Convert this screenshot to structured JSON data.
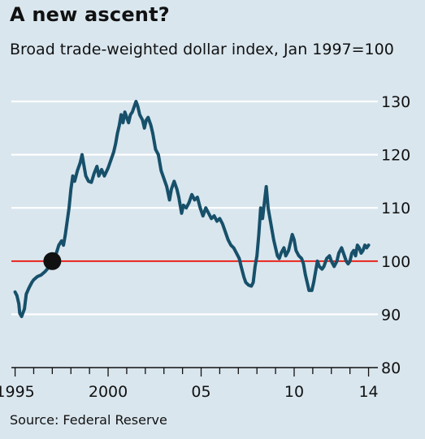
{
  "chart_data": {
    "type": "line",
    "title": "A new ascent?",
    "subtitle": "Broad trade-weighted dollar index, Jan 1997=100",
    "source": "Source: Federal Reserve",
    "xlabel": "",
    "ylabel": "",
    "xlim": [
      1994.8,
      2014.5
    ],
    "ylim": [
      80,
      130
    ],
    "y_axis_position": "right",
    "grid": "horizontal",
    "yticks": [
      130,
      120,
      110,
      100,
      90,
      80
    ],
    "ytick_labels": [
      "130",
      "120",
      "110",
      "100",
      "90",
      "80"
    ],
    "xtick_labels": [
      {
        "value": 1995,
        "label": "1995"
      },
      {
        "value": 2000,
        "label": "2000"
      },
      {
        "value": 2005,
        "label": "05"
      },
      {
        "value": 2010,
        "label": "10"
      },
      {
        "value": 2014,
        "label": "14"
      }
    ],
    "reference_line": {
      "y": 100,
      "color": "#e3120b"
    },
    "marker": {
      "x": 1997.0,
      "y": 100,
      "color": "#111111"
    },
    "line_color": "#17506a",
    "series": [
      {
        "name": "",
        "points": [
          [
            1995.0,
            94.2
          ],
          [
            1995.1,
            93.5
          ],
          [
            1995.2,
            92.0
          ],
          [
            1995.25,
            90.2
          ],
          [
            1995.35,
            89.6
          ],
          [
            1995.5,
            91.0
          ],
          [
            1995.6,
            93.8
          ],
          [
            1995.75,
            95.0
          ],
          [
            1995.9,
            96.0
          ],
          [
            1996.0,
            96.5
          ],
          [
            1996.2,
            97.1
          ],
          [
            1996.4,
            97.4
          ],
          [
            1996.6,
            98.0
          ],
          [
            1996.8,
            98.8
          ],
          [
            1997.0,
            100.0
          ],
          [
            1997.2,
            101.3
          ],
          [
            1997.35,
            103.0
          ],
          [
            1997.5,
            103.8
          ],
          [
            1997.6,
            103.0
          ],
          [
            1997.7,
            105.0
          ],
          [
            1997.8,
            107.5
          ],
          [
            1997.9,
            110.0
          ],
          [
            1998.0,
            113.5
          ],
          [
            1998.1,
            116.0
          ],
          [
            1998.2,
            115.0
          ],
          [
            1998.35,
            117.0
          ],
          [
            1998.5,
            118.5
          ],
          [
            1998.6,
            120.0
          ],
          [
            1998.7,
            118.0
          ],
          [
            1998.8,
            116.0
          ],
          [
            1998.95,
            115.0
          ],
          [
            1999.1,
            114.8
          ],
          [
            1999.25,
            116.5
          ],
          [
            1999.4,
            117.8
          ],
          [
            1999.5,
            116.0
          ],
          [
            1999.65,
            117.2
          ],
          [
            1999.8,
            116.0
          ],
          [
            2000.0,
            117.5
          ],
          [
            2000.15,
            119.0
          ],
          [
            2000.3,
            120.5
          ],
          [
            2000.4,
            122.0
          ],
          [
            2000.5,
            124.0
          ],
          [
            2000.6,
            125.5
          ],
          [
            2000.7,
            127.5
          ],
          [
            2000.8,
            126.0
          ],
          [
            2000.9,
            128.0
          ],
          [
            2001.0,
            127.0
          ],
          [
            2001.1,
            126.0
          ],
          [
            2001.2,
            127.5
          ],
          [
            2001.3,
            128.0
          ],
          [
            2001.45,
            129.5
          ],
          [
            2001.5,
            130.0
          ],
          [
            2001.6,
            129.0
          ],
          [
            2001.7,
            127.5
          ],
          [
            2001.85,
            126.5
          ],
          [
            2001.95,
            125.0
          ],
          [
            2002.05,
            126.5
          ],
          [
            2002.15,
            127.0
          ],
          [
            2002.3,
            125.5
          ],
          [
            2002.4,
            124.0
          ],
          [
            2002.55,
            121.0
          ],
          [
            2002.7,
            120.0
          ],
          [
            2002.85,
            117.0
          ],
          [
            2003.0,
            115.5
          ],
          [
            2003.15,
            114.0
          ],
          [
            2003.3,
            111.5
          ],
          [
            2003.4,
            113.5
          ],
          [
            2003.55,
            115.0
          ],
          [
            2003.7,
            113.5
          ],
          [
            2003.8,
            112.0
          ],
          [
            2003.95,
            109.0
          ],
          [
            2004.05,
            110.5
          ],
          [
            2004.2,
            110.0
          ],
          [
            2004.35,
            111.0
          ],
          [
            2004.5,
            112.5
          ],
          [
            2004.65,
            111.5
          ],
          [
            2004.8,
            112.0
          ],
          [
            2004.95,
            110.0
          ],
          [
            2005.1,
            108.5
          ],
          [
            2005.25,
            110.0
          ],
          [
            2005.4,
            109.0
          ],
          [
            2005.55,
            108.0
          ],
          [
            2005.7,
            108.5
          ],
          [
            2005.85,
            107.5
          ],
          [
            2006.0,
            108.0
          ],
          [
            2006.15,
            107.0
          ],
          [
            2006.3,
            105.5
          ],
          [
            2006.45,
            104.0
          ],
          [
            2006.6,
            103.0
          ],
          [
            2006.75,
            102.5
          ],
          [
            2006.9,
            101.5
          ],
          [
            2007.05,
            100.5
          ],
          [
            2007.15,
            99.0
          ],
          [
            2007.3,
            97.0
          ],
          [
            2007.4,
            96.0
          ],
          [
            2007.55,
            95.5
          ],
          [
            2007.7,
            95.3
          ],
          [
            2007.8,
            96.0
          ],
          [
            2007.9,
            99.0
          ],
          [
            2008.0,
            101.0
          ],
          [
            2008.1,
            105.0
          ],
          [
            2008.2,
            110.0
          ],
          [
            2008.3,
            108.0
          ],
          [
            2008.4,
            111.0
          ],
          [
            2008.5,
            114.0
          ],
          [
            2008.6,
            110.0
          ],
          [
            2008.7,
            108.0
          ],
          [
            2008.8,
            106.0
          ],
          [
            2008.9,
            104.0
          ],
          [
            2009.0,
            102.5
          ],
          [
            2009.1,
            101.0
          ],
          [
            2009.2,
            100.5
          ],
          [
            2009.3,
            101.5
          ],
          [
            2009.45,
            102.5
          ],
          [
            2009.55,
            101.0
          ],
          [
            2009.7,
            102.0
          ],
          [
            2009.8,
            103.5
          ],
          [
            2009.9,
            105.0
          ],
          [
            2010.0,
            104.0
          ],
          [
            2010.1,
            102.0
          ],
          [
            2010.25,
            101.0
          ],
          [
            2010.4,
            100.5
          ],
          [
            2010.5,
            99.5
          ],
          [
            2010.6,
            97.5
          ],
          [
            2010.7,
            96.0
          ],
          [
            2010.8,
            94.5
          ],
          [
            2010.95,
            94.5
          ],
          [
            2011.05,
            96.0
          ],
          [
            2011.15,
            98.0
          ],
          [
            2011.25,
            100.0
          ],
          [
            2011.35,
            99.0
          ],
          [
            2011.5,
            98.5
          ],
          [
            2011.6,
            99.0
          ],
          [
            2011.75,
            100.5
          ],
          [
            2011.9,
            101.0
          ],
          [
            2012.0,
            100.0
          ],
          [
            2012.15,
            99.0
          ],
          [
            2012.3,
            100.0
          ],
          [
            2012.4,
            101.5
          ],
          [
            2012.55,
            102.5
          ],
          [
            2012.65,
            101.5
          ],
          [
            2012.8,
            100.0
          ],
          [
            2012.9,
            99.5
          ],
          [
            2013.0,
            100.0
          ],
          [
            2013.1,
            101.5
          ],
          [
            2013.2,
            102.0
          ],
          [
            2013.3,
            101.0
          ],
          [
            2013.4,
            103.0
          ],
          [
            2013.5,
            102.5
          ],
          [
            2013.6,
            101.5
          ],
          [
            2013.7,
            102.0
          ],
          [
            2013.8,
            103.0
          ],
          [
            2013.9,
            102.5
          ],
          [
            2014.0,
            103.0
          ]
        ]
      }
    ]
  }
}
